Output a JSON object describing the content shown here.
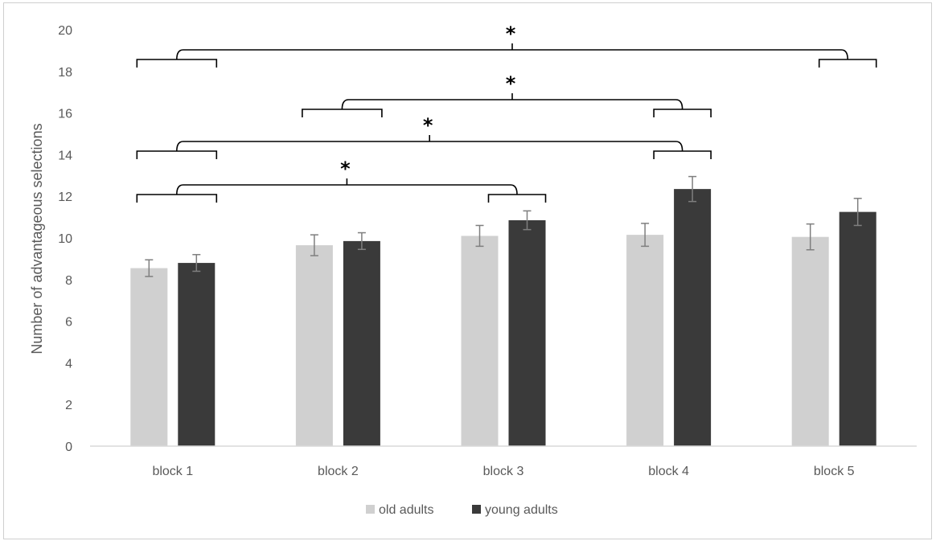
{
  "chart_data": {
    "type": "bar",
    "categories": [
      "block 1",
      "block 2",
      "block 3",
      "block 4",
      "block 5"
    ],
    "series": [
      {
        "name": "old adults",
        "color": "#d0d0d0",
        "values": [
          8.55,
          9.65,
          10.1,
          10.15,
          10.05
        ],
        "errors": [
          0.4,
          0.5,
          0.5,
          0.55,
          0.62
        ]
      },
      {
        "name": "young adults",
        "color": "#3a3a3a",
        "values": [
          8.8,
          9.85,
          10.85,
          12.35,
          11.25
        ],
        "errors": [
          0.4,
          0.4,
          0.45,
          0.6,
          0.65
        ]
      }
    ],
    "ylabel": "Number of advantageous selections",
    "xlabel": "",
    "ylim": [
      0,
      20
    ],
    "yticks": [
      0,
      2,
      4,
      6,
      8,
      10,
      12,
      14,
      16,
      18,
      20
    ],
    "grid": false,
    "legend": "bottom-center",
    "significance": [
      {
        "from": "block 1",
        "to": "block 5",
        "label": "*"
      },
      {
        "from": "block 2",
        "to": "block 4",
        "label": "*"
      },
      {
        "from": "block 1",
        "to": "block 4",
        "label": "*"
      },
      {
        "from": "block 1",
        "to": "block 3",
        "label": "*"
      }
    ]
  }
}
